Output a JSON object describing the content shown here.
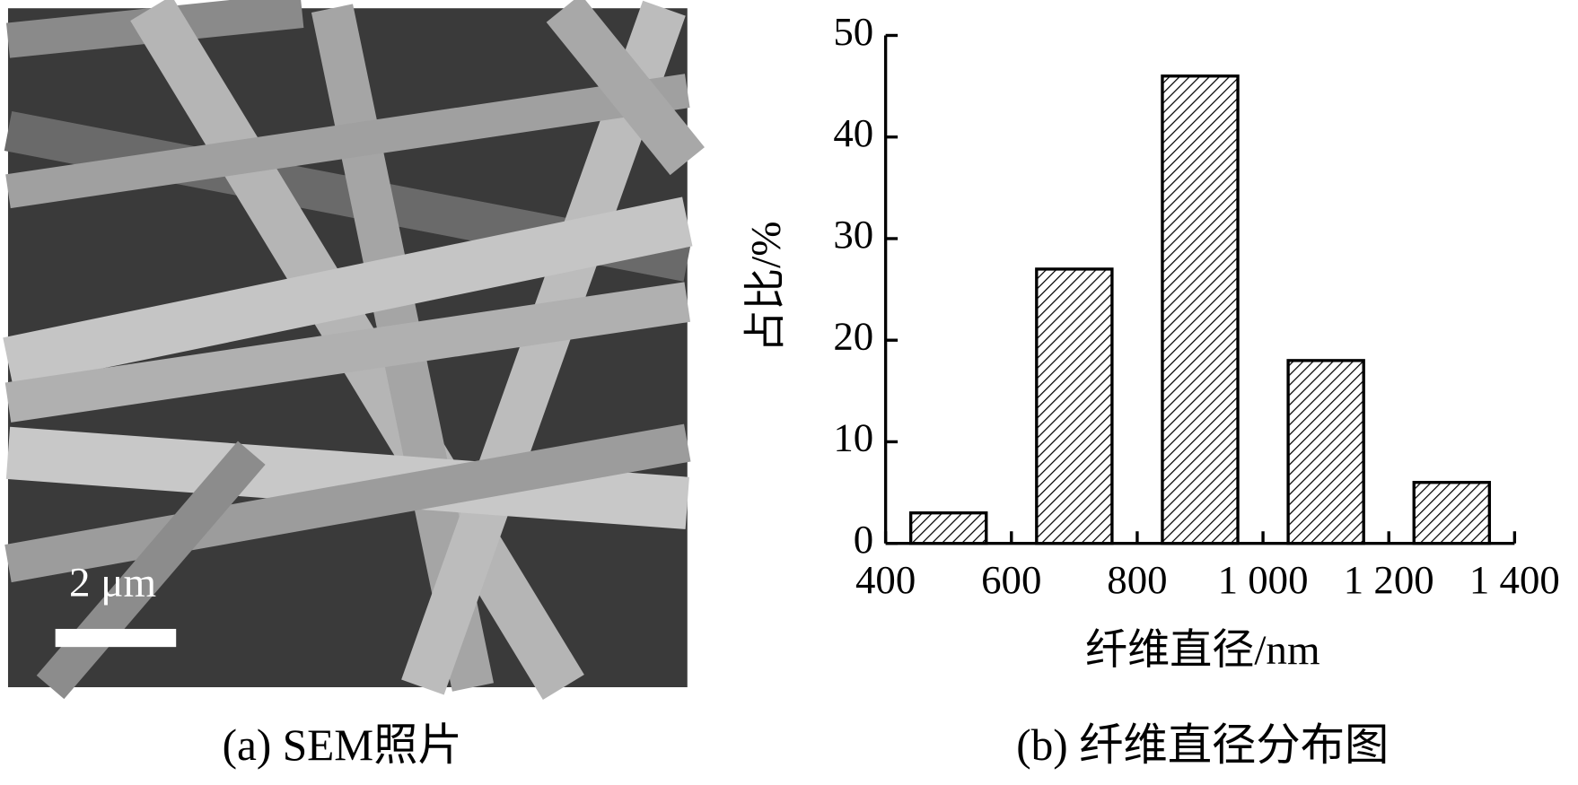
{
  "photo": {
    "scale_label": "2 μm",
    "caption": "(a) SEM照片"
  },
  "chart_data": {
    "type": "bar",
    "caption": "(b) 纤维直径分布图",
    "x_label": "纤维直径/nm",
    "y_label": "占比/%",
    "x": [
      500,
      700,
      900,
      1100,
      1300
    ],
    "values": [
      3,
      27,
      46,
      18,
      6
    ],
    "color": "#000000",
    "xlim": [
      400,
      1400
    ],
    "xticks": [
      400,
      600,
      800,
      {
        "value": 1000,
        "label": "1 000"
      },
      {
        "value": 1200,
        "label": "1 200"
      },
      {
        "value": 1400,
        "label": "1 400"
      }
    ],
    "ylim": [
      0,
      50
    ],
    "yticks": [
      0,
      10,
      20,
      30,
      40,
      50
    ],
    "grid": false
  }
}
